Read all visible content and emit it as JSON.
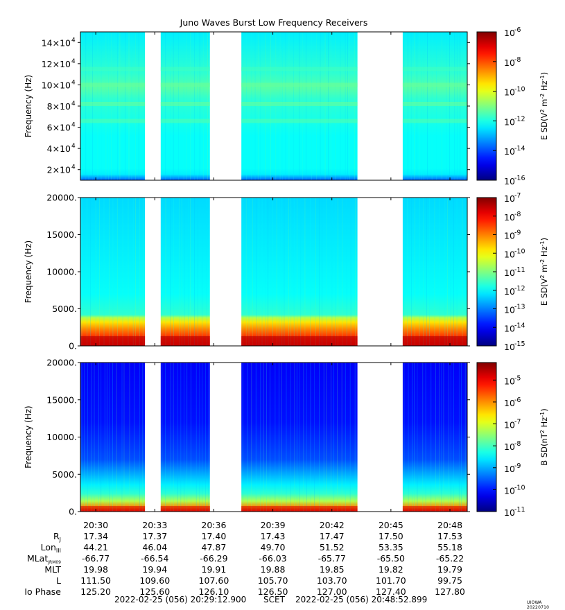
{
  "chart_data": {
    "type": "heatmap",
    "title": "Juno Waves Burst Low Frequency Receivers",
    "time_axis": {
      "tick_labels": [
        "20:30",
        "20:33",
        "20:36",
        "20:39",
        "20:42",
        "20:45",
        "20:48"
      ],
      "tick_minutes": [
        30,
        33,
        36,
        39,
        42,
        45,
        48
      ],
      "range_minutes": [
        29.22,
        48.88
      ]
    },
    "data_gaps_minutes": [
      [
        32.5,
        33.3
      ],
      [
        35.8,
        37.4
      ],
      [
        43.3,
        45.6
      ]
    ],
    "panels": [
      {
        "name": "panel-1",
        "ylabel": "Frequency (Hz)",
        "ylim": [
          10000,
          150000
        ],
        "yticks": [
          20000,
          40000,
          60000,
          80000,
          100000,
          120000,
          140000
        ],
        "ytick_labels": [
          {
            "m": "2×10",
            "e": "4"
          },
          {
            "m": "4×10",
            "e": "4"
          },
          {
            "m": "6×10",
            "e": "4"
          },
          {
            "m": "8×10",
            "e": "4"
          },
          {
            "m": "10×10",
            "e": "4"
          },
          {
            "m": "12×10",
            "e": "4"
          },
          {
            "m": "14×10",
            "e": "4"
          }
        ],
        "colorbar": {
          "label_parts": [
            "E SD(V",
            "2",
            " m",
            "-2",
            " Hz",
            "-1",
            ")"
          ],
          "log_min": -16,
          "log_max": -6,
          "tick_exps": [
            "-6",
            "-8",
            "-10",
            "-12",
            "-14",
            "-16"
          ],
          "tick_values": [
            -6,
            -8,
            -10,
            -12,
            -14,
            -16
          ]
        }
      },
      {
        "name": "panel-2",
        "ylabel": "Frequency (Hz)",
        "ylim": [
          0,
          20000
        ],
        "yticks": [
          0,
          5000,
          10000,
          15000,
          20000
        ],
        "ytick_labels": [
          "0.",
          "5000.",
          "10000.",
          "15000.",
          "20000."
        ],
        "colorbar": {
          "label_parts": [
            "E SD(V",
            "2",
            " m",
            "-2",
            " Hz",
            "-1",
            ")"
          ],
          "log_min": -15,
          "log_max": -7,
          "tick_exps": [
            "-7",
            "-8",
            "-9",
            "-10",
            "-11",
            "-12",
            "-13",
            "-14",
            "-15"
          ],
          "tick_values": [
            -7,
            -8,
            -9,
            -10,
            -11,
            -12,
            -13,
            -14,
            -15
          ]
        }
      },
      {
        "name": "panel-3",
        "ylabel": "Frequency (Hz)",
        "ylim": [
          0,
          20000
        ],
        "yticks": [
          0,
          5000,
          10000,
          15000,
          20000
        ],
        "ytick_labels": [
          "0.",
          "5000.",
          "10000.",
          "15000.",
          "20000."
        ],
        "colorbar": {
          "label_parts": [
            "B SD(nT",
            "2",
            " Hz",
            "-1",
            ")"
          ],
          "log_min": -11,
          "log_max": -4.2,
          "tick_exps": [
            "-5",
            "-6",
            "-7",
            "-8",
            "-9",
            "-10",
            "-11"
          ],
          "tick_values": [
            -5,
            -6,
            -7,
            -8,
            -9,
            -10,
            -11
          ]
        }
      }
    ]
  },
  "ephemeris": {
    "rows": [
      {
        "key": "rj",
        "label": "R",
        "sub": "J",
        "values": [
          "17.34",
          "17.37",
          "17.40",
          "17.43",
          "17.47",
          "17.50",
          "17.53"
        ]
      },
      {
        "key": "lon",
        "label": "Lon",
        "sub": "III",
        "values": [
          "44.21",
          "46.04",
          "47.87",
          "49.70",
          "51.52",
          "53.35",
          "55.18"
        ]
      },
      {
        "key": "mlat",
        "label": "MLat",
        "sub": "JRM09",
        "values": [
          "-66.77",
          "-66.54",
          "-66.29",
          "-66.03",
          "-65.77",
          "-65.50",
          "-65.22"
        ]
      },
      {
        "key": "mlt",
        "label": "MLT",
        "sub": "",
        "values": [
          "19.98",
          "19.94",
          "19.91",
          "19.88",
          "19.85",
          "19.82",
          "19.79"
        ]
      },
      {
        "key": "l",
        "label": "L",
        "sub": "",
        "values": [
          "111.50",
          "109.60",
          "107.60",
          "105.70",
          "103.70",
          "101.70",
          "99.75"
        ]
      },
      {
        "key": "io",
        "label": "Io Phase",
        "sub": "",
        "values": [
          "125.20",
          "125.60",
          "126.10",
          "126.50",
          "127.00",
          "127.40",
          "127.80"
        ]
      }
    ]
  },
  "footer": {
    "start": "2022-02-25 (056) 20:29:12.900",
    "mid": "SCET",
    "end": "2022-02-25 (056) 20:48:52.899",
    "version": "UIOWA 20220710"
  }
}
